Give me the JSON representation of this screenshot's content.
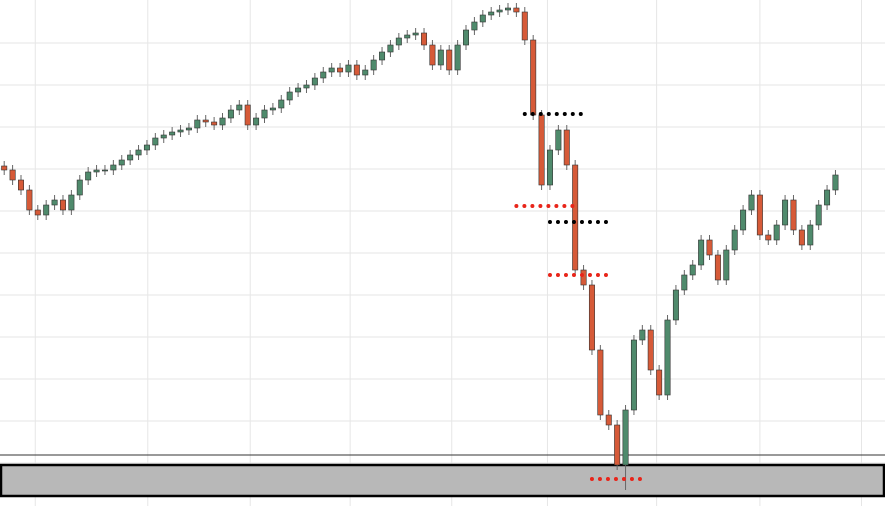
{
  "chart_data": {
    "type": "candlestick",
    "xlim": [
      -0.5,
      104.9
    ],
    "ylim": [
      0,
      506
    ],
    "grid": true,
    "xticks": [
      3.7,
      17.1,
      29.3,
      41.2,
      53.3,
      64.7,
      77.7,
      90,
      102.1
    ],
    "yticks": [
      43,
      85,
      127,
      169,
      211,
      253,
      295,
      337,
      379,
      421,
      463
    ],
    "up_color": "#4f8a6c",
    "down_color": "#d65a38",
    "open": [
      340,
      336,
      326,
      316,
      296,
      291,
      301,
      306,
      296,
      311,
      326,
      334,
      336,
      336,
      341,
      346,
      351,
      356,
      361,
      368,
      371,
      374,
      376,
      378,
      386,
      384,
      381,
      388,
      396,
      401,
      381,
      388,
      396,
      398,
      406,
      414,
      418,
      421,
      428,
      434,
      438,
      434,
      441,
      431,
      436,
      446,
      454,
      461,
      468,
      471,
      473,
      461,
      441,
      456,
      436,
      461,
      476,
      484,
      491,
      494,
      496,
      498,
      494,
      466,
      391,
      321,
      356,
      376,
      341,
      236,
      221,
      156,
      91,
      81,
      41,
      96,
      166,
      176,
      136,
      111,
      186,
      216,
      231,
      241,
      266,
      251,
      226,
      256,
      276,
      296,
      311,
      271,
      266,
      281,
      306,
      276,
      261,
      281,
      301,
      316
    ],
    "high": [
      345,
      341,
      331,
      321,
      301,
      306,
      311,
      311,
      316,
      331,
      339,
      341,
      341,
      346,
      351,
      356,
      361,
      366,
      373,
      376,
      379,
      381,
      383,
      391,
      391,
      389,
      393,
      401,
      406,
      406,
      393,
      401,
      403,
      411,
      419,
      423,
      426,
      433,
      439,
      443,
      443,
      446,
      446,
      441,
      451,
      459,
      466,
      473,
      476,
      478,
      478,
      466,
      461,
      461,
      466,
      481,
      489,
      496,
      499,
      501,
      503,
      503,
      499,
      471,
      396,
      361,
      381,
      381,
      346,
      241,
      226,
      161,
      96,
      86,
      101,
      171,
      181,
      181,
      141,
      191,
      221,
      236,
      246,
      271,
      271,
      256,
      261,
      281,
      301,
      316,
      316,
      276,
      286,
      311,
      311,
      281,
      286,
      306,
      321,
      336
    ],
    "low": [
      331,
      321,
      311,
      291,
      286,
      286,
      296,
      291,
      291,
      306,
      321,
      329,
      331,
      331,
      336,
      341,
      346,
      351,
      356,
      363,
      366,
      369,
      371,
      373,
      379,
      376,
      376,
      383,
      391,
      376,
      376,
      383,
      391,
      393,
      401,
      409,
      413,
      416,
      423,
      429,
      429,
      429,
      426,
      426,
      431,
      441,
      449,
      456,
      463,
      466,
      456,
      436,
      436,
      431,
      431,
      456,
      471,
      479,
      486,
      489,
      491,
      489,
      461,
      386,
      316,
      316,
      351,
      336,
      231,
      216,
      151,
      86,
      76,
      36,
      16,
      91,
      161,
      131,
      106,
      106,
      181,
      211,
      226,
      236,
      246,
      221,
      221,
      251,
      271,
      291,
      266,
      261,
      261,
      276,
      271,
      256,
      256,
      276,
      296,
      311
    ],
    "close": [
      336,
      326,
      316,
      296,
      291,
      301,
      306,
      296,
      311,
      326,
      334,
      336,
      336,
      341,
      346,
      351,
      356,
      361,
      368,
      371,
      374,
      376,
      378,
      386,
      384,
      381,
      388,
      396,
      401,
      381,
      388,
      396,
      398,
      406,
      414,
      418,
      421,
      428,
      434,
      438,
      434,
      441,
      431,
      436,
      446,
      454,
      461,
      468,
      471,
      473,
      461,
      441,
      456,
      436,
      461,
      476,
      484,
      491,
      494,
      496,
      498,
      494,
      466,
      391,
      321,
      356,
      376,
      341,
      236,
      221,
      156,
      91,
      81,
      41,
      96,
      166,
      176,
      136,
      111,
      186,
      216,
      231,
      241,
      266,
      251,
      226,
      256,
      276,
      296,
      311,
      271,
      266,
      281,
      306,
      276,
      261,
      281,
      301,
      316,
      331
    ],
    "levels": [
      {
        "value": 392,
        "start": 62,
        "end": 69,
        "color": "#000000"
      },
      {
        "value": 300,
        "start": 61,
        "end": 68,
        "color": "#e8251a"
      },
      {
        "value": 284,
        "start": 65,
        "end": 72,
        "color": "#000000"
      },
      {
        "value": 231,
        "start": 65,
        "end": 72,
        "color": "#e8251a"
      },
      {
        "value": 27,
        "start": 70,
        "end": 76,
        "color": "#e8251a"
      }
    ],
    "zone": {
      "low": 10,
      "high": 41,
      "color": "#b8b8b8"
    },
    "zone_line": 51
  }
}
